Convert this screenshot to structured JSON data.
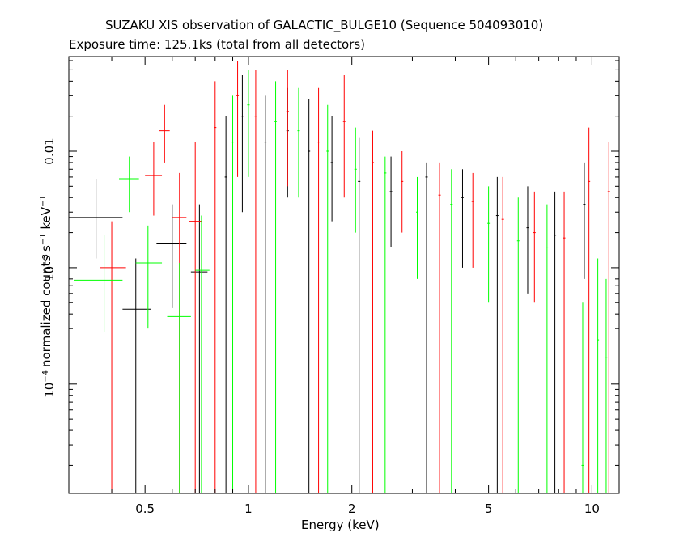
{
  "chart_data": {
    "type": "scatter",
    "title": "SUZAKU XIS observation of GALACTIC_BULGE10 (Sequence 504093010)",
    "subtitle": "Exposure time: 125.1ks (total from all detectors)",
    "xlabel": "Energy (keV)",
    "ylabel": {
      "text1": "normalized counts s",
      "sup1": "−1",
      "text2": " keV",
      "sup2": "−1"
    },
    "xscale": "log",
    "yscale": "log",
    "xlim": [
      0.3,
      12.0
    ],
    "ylim": [
      1.15e-05,
      0.065
    ],
    "xticks": [
      {
        "value": 0.5,
        "label": "0.5"
      },
      {
        "value": 1,
        "label": "1"
      },
      {
        "value": 2,
        "label": "2"
      },
      {
        "value": 5,
        "label": "5"
      },
      {
        "value": 10,
        "label": "10"
      }
    ],
    "yticks": [
      {
        "value": 0.0001,
        "label": "10",
        "sup": "−4"
      },
      {
        "value": 0.001,
        "label": "10",
        "sup": "−3"
      },
      {
        "value": 0.01,
        "label": "0.01",
        "sup": ""
      }
    ],
    "series": [
      {
        "color": "#000000",
        "points": [
          {
            "x": 0.36,
            "xlo": 0.3,
            "xhi": 0.43,
            "y": 0.0027,
            "ylo": 0.0012,
            "yhi": 0.0058
          },
          {
            "x": 0.47,
            "xlo": 0.43,
            "xhi": 0.52,
            "y": 0.00044,
            "ylo": 1.15e-05,
            "yhi": 0.0012
          },
          {
            "x": 0.6,
            "xlo": 0.54,
            "xhi": 0.66,
            "y": 0.0016,
            "ylo": 0.00045,
            "yhi": 0.0035
          },
          {
            "x": 0.72,
            "xlo": 0.68,
            "xhi": 0.76,
            "y": 0.00092,
            "ylo": 1.15e-05,
            "yhi": 0.0035
          },
          {
            "x": 0.86,
            "y": 0.006,
            "ylo": 1.15e-05,
            "yhi": 0.02
          },
          {
            "x": 0.96,
            "y": 0.02,
            "ylo": 0.003,
            "yhi": 0.045
          },
          {
            "x": 1.12,
            "y": 0.012,
            "ylo": 1.15e-05,
            "yhi": 0.03
          },
          {
            "x": 1.3,
            "y": 0.015,
            "ylo": 0.004,
            "yhi": 0.035
          },
          {
            "x": 1.5,
            "y": 0.01,
            "ylo": 1.15e-05,
            "yhi": 0.028
          },
          {
            "x": 1.75,
            "y": 0.008,
            "ylo": 0.0025,
            "yhi": 0.02
          },
          {
            "x": 2.1,
            "y": 0.0055,
            "ylo": 1.15e-05,
            "yhi": 0.013
          },
          {
            "x": 2.6,
            "y": 0.0045,
            "ylo": 0.0015,
            "yhi": 0.009
          },
          {
            "x": 3.3,
            "y": 0.006,
            "ylo": 1.15e-05,
            "yhi": 0.008
          },
          {
            "x": 4.2,
            "y": 0.004,
            "ylo": 0.001,
            "yhi": 0.007
          },
          {
            "x": 5.3,
            "y": 0.0028,
            "ylo": 1.15e-05,
            "yhi": 0.006
          },
          {
            "x": 6.5,
            "y": 0.0022,
            "ylo": 0.0006,
            "yhi": 0.005
          },
          {
            "x": 7.8,
            "y": 0.0019,
            "ylo": 1.15e-05,
            "yhi": 0.0045
          },
          {
            "x": 9.5,
            "y": 0.0035,
            "ylo": 0.0008,
            "yhi": 0.008
          }
        ]
      },
      {
        "color": "#ff0000",
        "points": [
          {
            "x": 0.4,
            "xlo": 0.37,
            "xhi": 0.44,
            "y": 0.001,
            "ylo": 1.15e-05,
            "yhi": 0.0025
          },
          {
            "x": 0.53,
            "xlo": 0.5,
            "xhi": 0.56,
            "y": 0.0062,
            "ylo": 0.0028,
            "yhi": 0.012
          },
          {
            "x": 0.57,
            "xlo": 0.55,
            "xhi": 0.59,
            "y": 0.015,
            "ylo": 0.008,
            "yhi": 0.025
          },
          {
            "x": 0.63,
            "xlo": 0.6,
            "xhi": 0.66,
            "y": 0.0027,
            "ylo": 1.15e-05,
            "yhi": 0.0065
          },
          {
            "x": 0.7,
            "xlo": 0.67,
            "xhi": 0.73,
            "y": 0.0025,
            "ylo": 1.15e-05,
            "yhi": 0.012
          },
          {
            "x": 0.8,
            "y": 0.016,
            "ylo": 1.15e-05,
            "yhi": 0.04
          },
          {
            "x": 0.93,
            "y": 0.03,
            "ylo": 0.006,
            "yhi": 0.06
          },
          {
            "x": 1.05,
            "y": 0.02,
            "ylo": 1.15e-05,
            "yhi": 0.05
          },
          {
            "x": 1.3,
            "y": 0.022,
            "ylo": 0.005,
            "yhi": 0.05
          },
          {
            "x": 1.6,
            "y": 0.012,
            "ylo": 1.15e-05,
            "yhi": 0.035
          },
          {
            "x": 1.9,
            "y": 0.018,
            "ylo": 0.004,
            "yhi": 0.045
          },
          {
            "x": 2.3,
            "y": 0.008,
            "ylo": 1.15e-05,
            "yhi": 0.015
          },
          {
            "x": 2.8,
            "y": 0.0055,
            "ylo": 0.002,
            "yhi": 0.01
          },
          {
            "x": 3.6,
            "y": 0.0042,
            "ylo": 1.15e-05,
            "yhi": 0.008
          },
          {
            "x": 4.5,
            "y": 0.0037,
            "ylo": 0.001,
            "yhi": 0.0065
          },
          {
            "x": 5.5,
            "y": 0.0026,
            "ylo": 1.15e-05,
            "yhi": 0.006
          },
          {
            "x": 6.8,
            "y": 0.002,
            "ylo": 0.0005,
            "yhi": 0.0045
          },
          {
            "x": 8.3,
            "y": 0.0018,
            "ylo": 1.15e-05,
            "yhi": 0.0045
          },
          {
            "x": 9.8,
            "y": 0.0055,
            "ylo": 1.15e-05,
            "yhi": 0.016
          },
          {
            "x": 11.2,
            "y": 0.0045,
            "ylo": 1.15e-05,
            "yhi": 0.012
          }
        ]
      },
      {
        "color": "#00ff00",
        "points": [
          {
            "x": 0.38,
            "xlo": 0.31,
            "xhi": 0.43,
            "y": 0.00078,
            "ylo": 0.00028,
            "yhi": 0.0019
          },
          {
            "x": 0.45,
            "xlo": 0.42,
            "xhi": 0.48,
            "y": 0.0058,
            "ylo": 0.003,
            "yhi": 0.009
          },
          {
            "x": 0.51,
            "xlo": 0.47,
            "xhi": 0.56,
            "y": 0.0011,
            "ylo": 0.0003,
            "yhi": 0.0023
          },
          {
            "x": 0.63,
            "xlo": 0.58,
            "xhi": 0.68,
            "y": 0.00038,
            "ylo": 1.15e-05,
            "yhi": 0.0011
          },
          {
            "x": 0.73,
            "xlo": 0.7,
            "xhi": 0.77,
            "y": 0.00095,
            "ylo": 1.15e-05,
            "yhi": 0.0028
          },
          {
            "x": 0.9,
            "y": 0.012,
            "ylo": 1.15e-05,
            "yhi": 0.03
          },
          {
            "x": 1.0,
            "y": 0.025,
            "ylo": 0.006,
            "yhi": 0.05
          },
          {
            "x": 1.2,
            "y": 0.018,
            "ylo": 1.15e-05,
            "yhi": 0.04
          },
          {
            "x": 1.4,
            "y": 0.015,
            "ylo": 0.004,
            "yhi": 0.035
          },
          {
            "x": 1.7,
            "y": 0.01,
            "ylo": 1.15e-05,
            "yhi": 0.025
          },
          {
            "x": 2.05,
            "y": 0.007,
            "ylo": 0.002,
            "yhi": 0.016
          },
          {
            "x": 2.5,
            "y": 0.0065,
            "ylo": 1.15e-05,
            "yhi": 0.009
          },
          {
            "x": 3.1,
            "y": 0.003,
            "ylo": 0.0008,
            "yhi": 0.006
          },
          {
            "x": 3.9,
            "y": 0.0035,
            "ylo": 1.15e-05,
            "yhi": 0.007
          },
          {
            "x": 5.0,
            "y": 0.0024,
            "ylo": 0.0005,
            "yhi": 0.005
          },
          {
            "x": 6.1,
            "y": 0.0017,
            "ylo": 1.15e-05,
            "yhi": 0.004
          },
          {
            "x": 7.4,
            "y": 0.0015,
            "ylo": 1.15e-05,
            "yhi": 0.0035
          },
          {
            "x": 9.4,
            "y": 2e-05,
            "ylo": 1.15e-05,
            "yhi": 0.0005
          },
          {
            "x": 10.4,
            "y": 0.00024,
            "ylo": 1.15e-05,
            "yhi": 0.0012
          },
          {
            "x": 11.0,
            "y": 0.00017,
            "ylo": 1.15e-05,
            "yhi": 0.0008
          }
        ]
      }
    ]
  }
}
